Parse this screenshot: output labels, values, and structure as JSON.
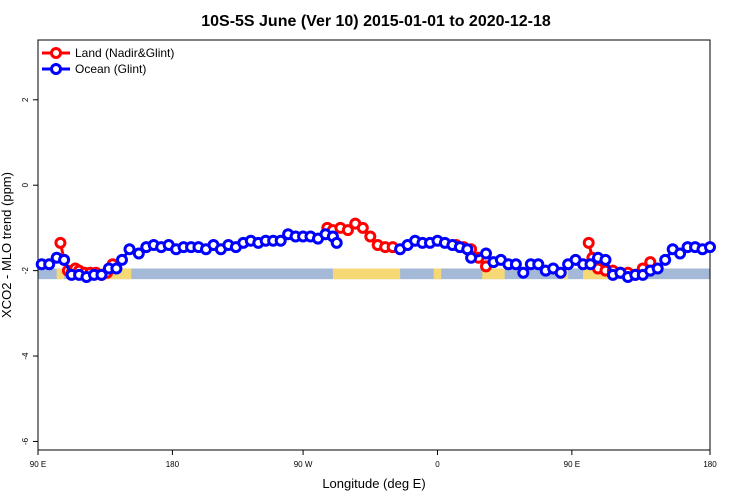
{
  "chart_data": {
    "type": "line",
    "title": "10S-5S June (Ver 10)   2015-01-01 to 2020-12-18",
    "xlabel": "Longitude (deg E)",
    "ylabel": "XCO2 - MLO trend (ppm)",
    "xlim": [
      90,
      450
    ],
    "ylim": [
      -6.2,
      3.4
    ],
    "x_ticks": [
      {
        "value": 90,
        "label": "90 E"
      },
      {
        "value": 162,
        "label": "180"
      },
      {
        "value": 232,
        "label": "90 W"
      },
      {
        "value": 304,
        "label": "0"
      },
      {
        "value": 376,
        "label": "90 E"
      },
      {
        "value": 450,
        "label": "180"
      }
    ],
    "y_ticks": [
      {
        "value": 2,
        "label": "2"
      },
      {
        "value": 0,
        "label": "0"
      },
      {
        "value": -2,
        "label": "-2"
      },
      {
        "value": -4,
        "label": "-4"
      },
      {
        "value": -6,
        "label": "-6"
      }
    ],
    "legend": {
      "position": "top-left",
      "entries": [
        {
          "label": "Land (Nadir&Glint)",
          "color": "#ff0000"
        },
        {
          "label": "Ocean (Glint)",
          "color": "#0000ff"
        }
      ]
    },
    "surface_band": {
      "y_range": [
        -2.2,
        -1.95
      ],
      "ocean_color": "#a4b8d8",
      "land_color": "#f6d874",
      "land_segments": [
        [
          100,
          104
        ],
        [
          120,
          140
        ],
        [
          248,
          284
        ],
        [
          302,
          306
        ],
        [
          328,
          340
        ],
        [
          370,
          374
        ],
        [
          382,
          398
        ],
        [
          408,
          414
        ]
      ]
    },
    "series": [
      {
        "name": "Land (Nadir&Glint)",
        "color": "#ff0000",
        "points": [
          [
            102,
            -1.35
          ],
          [
            104,
            -1.75
          ],
          [
            106,
            -2.0
          ],
          [
            108,
            -2.05
          ],
          [
            110,
            -1.95
          ],
          [
            112,
            -2.0
          ],
          [
            115,
            -2.05
          ],
          [
            118,
            -2.05
          ],
          [
            121,
            -2.05
          ],
          [
            124,
            -2.1
          ],
          [
            127,
            -2.05
          ],
          [
            130,
            -1.85
          ],
          [
            245,
            -1.0
          ],
          [
            248,
            -1.05
          ],
          [
            252,
            -1.0
          ],
          [
            256,
            -1.05
          ],
          [
            260,
            -0.9
          ],
          [
            264,
            -1.0
          ],
          [
            268,
            -1.2
          ],
          [
            272,
            -1.4
          ],
          [
            276,
            -1.45
          ],
          [
            280,
            -1.45
          ],
          [
            314,
            -1.4
          ],
          [
            318,
            -1.45
          ],
          [
            322,
            -1.5
          ],
          [
            326,
            -1.7
          ],
          [
            330,
            -1.9
          ],
          [
            385,
            -1.35
          ],
          [
            387,
            -1.7
          ],
          [
            390,
            -1.95
          ],
          [
            394,
            -2.0
          ],
          [
            398,
            -2.0
          ],
          [
            402,
            -2.05
          ],
          [
            406,
            -2.05
          ],
          [
            410,
            -2.1
          ],
          [
            414,
            -1.95
          ],
          [
            418,
            -1.8
          ]
        ]
      },
      {
        "name": "Ocean (Glint)",
        "color": "#0000ff",
        "points": [
          [
            92,
            -1.85
          ],
          [
            96,
            -1.85
          ],
          [
            100,
            -1.7
          ],
          [
            104,
            -1.75
          ],
          [
            108,
            -2.1
          ],
          [
            112,
            -2.1
          ],
          [
            116,
            -2.15
          ],
          [
            120,
            -2.1
          ],
          [
            124,
            -2.1
          ],
          [
            128,
            -1.95
          ],
          [
            132,
            -1.95
          ],
          [
            135,
            -1.75
          ],
          [
            139,
            -1.5
          ],
          [
            144,
            -1.6
          ],
          [
            148,
            -1.45
          ],
          [
            152,
            -1.4
          ],
          [
            156,
            -1.45
          ],
          [
            160,
            -1.4
          ],
          [
            164,
            -1.5
          ],
          [
            168,
            -1.45
          ],
          [
            172,
            -1.45
          ],
          [
            176,
            -1.45
          ],
          [
            180,
            -1.5
          ],
          [
            184,
            -1.4
          ],
          [
            188,
            -1.5
          ],
          [
            192,
            -1.4
          ],
          [
            196,
            -1.45
          ],
          [
            200,
            -1.35
          ],
          [
            204,
            -1.3
          ],
          [
            208,
            -1.35
          ],
          [
            212,
            -1.3
          ],
          [
            216,
            -1.3
          ],
          [
            220,
            -1.3
          ],
          [
            224,
            -1.15
          ],
          [
            228,
            -1.2
          ],
          [
            232,
            -1.2
          ],
          [
            236,
            -1.2
          ],
          [
            240,
            -1.25
          ],
          [
            244,
            -1.15
          ],
          [
            248,
            -1.2
          ],
          [
            250,
            -1.35
          ],
          [
            284,
            -1.5
          ],
          [
            288,
            -1.4
          ],
          [
            292,
            -1.3
          ],
          [
            296,
            -1.35
          ],
          [
            300,
            -1.35
          ],
          [
            304,
            -1.3
          ],
          [
            308,
            -1.35
          ],
          [
            312,
            -1.4
          ],
          [
            316,
            -1.45
          ],
          [
            320,
            -1.5
          ],
          [
            322,
            -1.7
          ],
          [
            330,
            -1.6
          ],
          [
            334,
            -1.8
          ],
          [
            338,
            -1.75
          ],
          [
            342,
            -1.85
          ],
          [
            346,
            -1.85
          ],
          [
            350,
            -2.05
          ],
          [
            354,
            -1.85
          ],
          [
            358,
            -1.85
          ],
          [
            362,
            -2.0
          ],
          [
            366,
            -1.95
          ],
          [
            370,
            -2.05
          ],
          [
            374,
            -1.85
          ],
          [
            378,
            -1.75
          ],
          [
            382,
            -1.85
          ],
          [
            386,
            -1.85
          ],
          [
            390,
            -1.7
          ],
          [
            394,
            -1.75
          ],
          [
            398,
            -2.1
          ],
          [
            402,
            -2.05
          ],
          [
            406,
            -2.15
          ],
          [
            410,
            -2.1
          ],
          [
            414,
            -2.1
          ],
          [
            418,
            -2.0
          ],
          [
            422,
            -1.95
          ],
          [
            426,
            -1.75
          ],
          [
            430,
            -1.5
          ],
          [
            434,
            -1.6
          ],
          [
            438,
            -1.45
          ],
          [
            442,
            -1.45
          ],
          [
            446,
            -1.5
          ],
          [
            450,
            -1.45
          ]
        ]
      }
    ]
  }
}
